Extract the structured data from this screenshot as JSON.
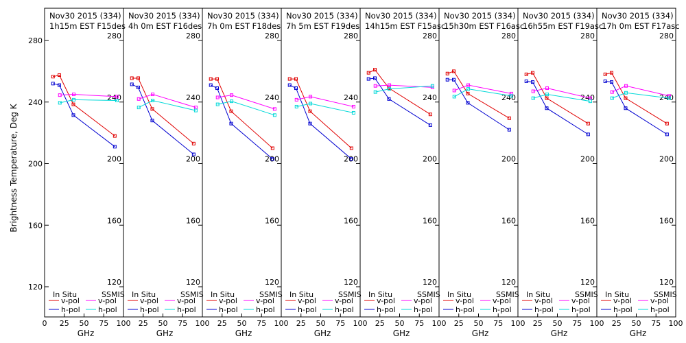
{
  "chart_data": {
    "type": "line",
    "ylabel": "Brightness Temperature, Deg K",
    "xlabel": "GHz",
    "xlim": [
      0,
      100
    ],
    "ylim": [
      110,
      290
    ],
    "xticks": [
      0,
      25,
      50,
      75,
      100
    ],
    "yticks": [
      120,
      160,
      200,
      240,
      280
    ],
    "legend": {
      "in_situ_label": "In Situ",
      "ssmis_label": "SSMIS",
      "entries": [
        "v-pol",
        "h-pol"
      ]
    },
    "colors": {
      "insitu_v": "#e00000",
      "insitu_h": "#0000d0",
      "ssmis_v": "#ff00ff",
      "ssmis_h": "#00d8d8"
    },
    "panels": [
      {
        "title1": "Nov30 2015 (334)",
        "title2": "1h15m EST F15des",
        "insitu_v": [
          [
            10.65,
            256.5
          ],
          [
            18.7,
            257.5
          ],
          [
            36.5,
            238.5
          ],
          [
            89,
            218
          ]
        ],
        "insitu_h": [
          [
            10.65,
            252
          ],
          [
            18.7,
            251
          ],
          [
            36.5,
            231.5
          ],
          [
            89,
            211
          ]
        ],
        "ssmis_v": [
          [
            19.35,
            244.5
          ],
          [
            37,
            245
          ],
          [
            91.655,
            243.5
          ]
        ],
        "ssmis_h": [
          [
            19.35,
            239.5
          ],
          [
            37,
            241.5
          ],
          [
            91.655,
            241
          ]
        ]
      },
      {
        "title1": "Nov30 2015 (334)",
        "title2": "4h 0m  EST F16des",
        "insitu_v": [
          [
            10.65,
            255.5
          ],
          [
            18.7,
            255.5
          ],
          [
            36.5,
            235.5
          ],
          [
            89,
            213
          ]
        ],
        "insitu_h": [
          [
            10.65,
            251.5
          ],
          [
            18.7,
            249.5
          ],
          [
            36.5,
            228
          ],
          [
            89,
            206
          ]
        ],
        "ssmis_v": [
          [
            19.35,
            242
          ],
          [
            37,
            245
          ],
          [
            91.655,
            236.5
          ]
        ],
        "ssmis_h": [
          [
            19.35,
            236.5
          ],
          [
            37,
            241
          ],
          [
            91.655,
            234.5
          ]
        ]
      },
      {
        "title1": "Nov30 2015 (334)",
        "title2": "7h 0m  EST F18des",
        "insitu_v": [
          [
            10.65,
            255
          ],
          [
            18.7,
            255
          ],
          [
            36.5,
            234
          ],
          [
            89,
            210
          ]
        ],
        "insitu_h": [
          [
            10.65,
            251
          ],
          [
            18.7,
            249
          ],
          [
            36.5,
            226
          ],
          [
            89,
            203
          ]
        ],
        "ssmis_v": [
          [
            19.35,
            243
          ],
          [
            37,
            244.5
          ],
          [
            91.655,
            235.5
          ]
        ],
        "ssmis_h": [
          [
            19.35,
            238.5
          ],
          [
            37,
            240.5
          ],
          [
            91.655,
            231.5
          ]
        ]
      },
      {
        "title1": "Nov30 2015 (334)",
        "title2": "7h 5m  EST F19des",
        "insitu_v": [
          [
            10.65,
            255
          ],
          [
            18.7,
            255
          ],
          [
            36.5,
            234
          ],
          [
            89,
            210
          ]
        ],
        "insitu_h": [
          [
            10.65,
            251
          ],
          [
            18.7,
            249
          ],
          [
            36.5,
            226
          ],
          [
            89,
            203
          ]
        ],
        "ssmis_v": [
          [
            19.35,
            241.5
          ],
          [
            37,
            243.5
          ],
          [
            91.655,
            237
          ]
        ],
        "ssmis_h": [
          [
            19.35,
            237
          ],
          [
            37,
            239
          ],
          [
            91.655,
            233
          ]
        ]
      },
      {
        "title1": "Nov30 2015 (334)",
        "title2": "14h15m EST F15asc",
        "insitu_v": [
          [
            10.65,
            259
          ],
          [
            18.7,
            261
          ],
          [
            36.5,
            249
          ],
          [
            89,
            232
          ]
        ],
        "insitu_h": [
          [
            10.65,
            255
          ],
          [
            18.7,
            255.5
          ],
          [
            36.5,
            242
          ],
          [
            89,
            225
          ]
        ],
        "ssmis_v": [
          [
            19.35,
            250.5
          ],
          [
            37,
            251
          ],
          [
            91.655,
            249.5
          ]
        ],
        "ssmis_h": [
          [
            19.35,
            246.5
          ],
          [
            37,
            248.5
          ],
          [
            91.655,
            250.5
          ]
        ]
      },
      {
        "title1": "Nov30 2015 (334)",
        "title2": "15h30m EST F16asc",
        "insitu_v": [
          [
            10.65,
            258.5
          ],
          [
            18.7,
            260
          ],
          [
            36.5,
            245.5
          ],
          [
            89,
            229.5
          ]
        ],
        "insitu_h": [
          [
            10.65,
            254.5
          ],
          [
            18.7,
            254.5
          ],
          [
            36.5,
            239.5
          ],
          [
            89,
            222
          ]
        ],
        "ssmis_v": [
          [
            19.35,
            247.5
          ],
          [
            37,
            251
          ],
          [
            91.655,
            245.5
          ]
        ],
        "ssmis_h": [
          [
            19.35,
            243.5
          ],
          [
            37,
            248.5
          ],
          [
            91.655,
            244
          ]
        ]
      },
      {
        "title1": "Nov30 2015 (334)",
        "title2": "16h55m EST F19asc",
        "insitu_v": [
          [
            10.65,
            258
          ],
          [
            18.7,
            259
          ],
          [
            36.5,
            242.5
          ],
          [
            89,
            226
          ]
        ],
        "insitu_h": [
          [
            10.65,
            253.5
          ],
          [
            18.7,
            253
          ],
          [
            36.5,
            236
          ],
          [
            89,
            219
          ]
        ],
        "ssmis_v": [
          [
            19.35,
            247
          ],
          [
            37,
            249
          ],
          [
            91.655,
            242.5
          ]
        ],
        "ssmis_h": [
          [
            19.35,
            242.5
          ],
          [
            37,
            245
          ],
          [
            91.655,
            240.5
          ]
        ]
      },
      {
        "title1": "Nov30 2015 (334)",
        "title2": "17h 0m  EST F17asc",
        "insitu_v": [
          [
            10.65,
            258
          ],
          [
            18.7,
            259
          ],
          [
            36.5,
            242.5
          ],
          [
            89,
            226
          ]
        ],
        "insitu_h": [
          [
            10.65,
            253.5
          ],
          [
            18.7,
            253
          ],
          [
            36.5,
            236
          ],
          [
            89,
            219
          ]
        ],
        "ssmis_v": [
          [
            19.35,
            246.5
          ],
          [
            37,
            250.5
          ],
          [
            91.655,
            244
          ]
        ],
        "ssmis_h": [
          [
            19.35,
            242.5
          ],
          [
            37,
            246
          ],
          [
            91.655,
            242.5
          ]
        ]
      }
    ]
  }
}
